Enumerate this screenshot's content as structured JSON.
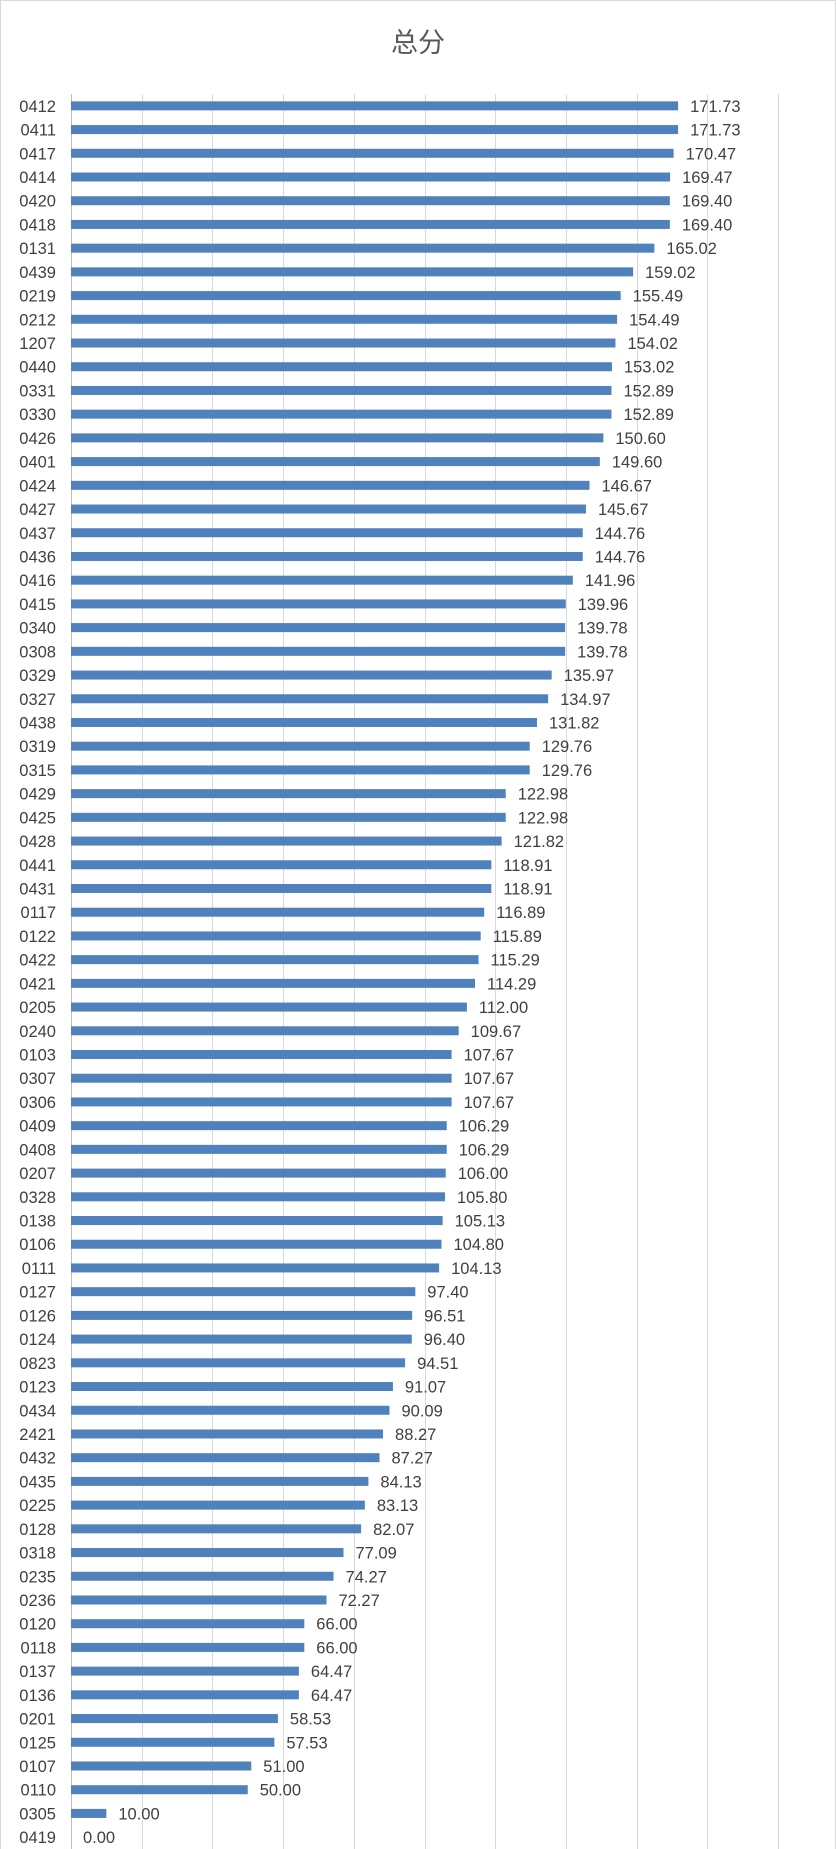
{
  "chart_data": {
    "type": "bar",
    "orientation": "horizontal",
    "title": "总分",
    "categories": [
      "0412",
      "0411",
      "0417",
      "0414",
      "0420",
      "0418",
      "0131",
      "0439",
      "0219",
      "0212",
      "1207",
      "0440",
      "0331",
      "0330",
      "0426",
      "0401",
      "0424",
      "0427",
      "0437",
      "0436",
      "0416",
      "0415",
      "0340",
      "0308",
      "0329",
      "0327",
      "0438",
      "0319",
      "0315",
      "0429",
      "0425",
      "0428",
      "0441",
      "0431",
      "0117",
      "0122",
      "0422",
      "0421",
      "0205",
      "0240",
      "0103",
      "0307",
      "0306",
      "0409",
      "0408",
      "0207",
      "0328",
      "0138",
      "0106",
      "0111",
      "0127",
      "0126",
      "0124",
      "0823",
      "0123",
      "0434",
      "2421",
      "0432",
      "0435",
      "0225",
      "0128",
      "0318",
      "0235",
      "0236",
      "0120",
      "0118",
      "0137",
      "0136",
      "0201",
      "0125",
      "0107",
      "0110",
      "0305",
      "0419"
    ],
    "values": [
      171.73,
      171.73,
      170.47,
      169.47,
      169.4,
      169.4,
      165.02,
      159.02,
      155.49,
      154.49,
      154.02,
      153.02,
      152.89,
      152.89,
      150.6,
      149.6,
      146.67,
      145.67,
      144.76,
      144.76,
      141.96,
      139.96,
      139.78,
      139.78,
      135.97,
      134.97,
      131.82,
      129.76,
      129.76,
      122.98,
      122.98,
      121.82,
      118.91,
      118.91,
      116.89,
      115.89,
      115.29,
      114.29,
      112.0,
      109.67,
      107.67,
      107.67,
      107.67,
      106.29,
      106.29,
      106.0,
      105.8,
      105.13,
      104.8,
      104.13,
      97.4,
      96.51,
      96.4,
      94.51,
      91.07,
      90.09,
      88.27,
      87.27,
      84.13,
      83.13,
      82.07,
      77.09,
      74.27,
      72.27,
      66.0,
      66.0,
      64.47,
      64.47,
      58.53,
      57.53,
      51.0,
      50.0,
      10.0,
      0.0
    ],
    "data_labels": [
      "171.73",
      "171.73",
      "170.47",
      "169.47",
      "169.40",
      "169.40",
      "165.02",
      "159.02",
      "155.49",
      "154.49",
      "154.02",
      "153.02",
      "152.89",
      "152.89",
      "150.60",
      "149.60",
      "146.67",
      "145.67",
      "144.76",
      "144.76",
      "141.96",
      "139.96",
      "139.78",
      "139.78",
      "135.97",
      "134.97",
      "131.82",
      "129.76",
      "129.76",
      "122.98",
      "122.98",
      "121.82",
      "118.91",
      "118.91",
      "116.89",
      "115.89",
      "115.29",
      "114.29",
      "112.00",
      "109.67",
      "107.67",
      "107.67",
      "107.67",
      "106.29",
      "106.29",
      "106.00",
      "105.80",
      "105.13",
      "104.80",
      "104.13",
      "97.40",
      "96.51",
      "96.40",
      "94.51",
      "91.07",
      "90.09",
      "88.27",
      "87.27",
      "84.13",
      "83.13",
      "82.07",
      "77.09",
      "74.27",
      "72.27",
      "66.00",
      "66.00",
      "64.47",
      "64.47",
      "58.53",
      "57.53",
      "51.00",
      "50.00",
      "10.00",
      "0.00"
    ],
    "xlim": [
      0,
      200
    ],
    "major_unit": 20,
    "grid": true,
    "legend": "none",
    "colors": {
      "bar": "#4F81BD",
      "gridline": "#D9D9D9",
      "axis": "#BFBFBF",
      "border": "#D9D9D9",
      "text": "#404040",
      "title": "#595959"
    }
  }
}
